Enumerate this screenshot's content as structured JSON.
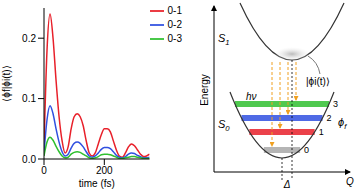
{
  "chart_data": {
    "type": "line",
    "xlabel": "time (fs)",
    "ylabel": "⟨ϕf|ϕi(t)⟩",
    "x": [
      0,
      10,
      20,
      30,
      40,
      50,
      60,
      70,
      80,
      90,
      100,
      110,
      120,
      130,
      140,
      150,
      160,
      170,
      180,
      190,
      200,
      210,
      220,
      230,
      240,
      250,
      260,
      270,
      280,
      290,
      300,
      310,
      320,
      330,
      340,
      350
    ],
    "series": [
      {
        "name": "0-1",
        "color": "#e8202a",
        "values": [
          0.02,
          0.18,
          0.24,
          0.2,
          0.13,
          0.07,
          0.03,
          0.01,
          0.02,
          0.05,
          0.07,
          0.075,
          0.07,
          0.055,
          0.03,
          0.01,
          0.005,
          0.01,
          0.025,
          0.04,
          0.05,
          0.05,
          0.045,
          0.03,
          0.015,
          0.005,
          0.003,
          0.01,
          0.02,
          0.025,
          0.022,
          0.015,
          0.008,
          0.004,
          0.005,
          0.008
        ]
      },
      {
        "name": "0-2",
        "color": "#3050e0",
        "values": [
          0.01,
          0.065,
          0.088,
          0.075,
          0.05,
          0.028,
          0.012,
          0.005,
          0.008,
          0.018,
          0.026,
          0.028,
          0.026,
          0.02,
          0.012,
          0.005,
          0.003,
          0.005,
          0.01,
          0.016,
          0.019,
          0.019,
          0.017,
          0.012,
          0.006,
          0.003,
          0.002,
          0.004,
          0.008,
          0.01,
          0.009,
          0.006,
          0.004,
          0.002,
          0.002,
          0.003
        ]
      },
      {
        "name": "0-3",
        "color": "#30c030",
        "values": [
          0.005,
          0.028,
          0.036,
          0.031,
          0.021,
          0.012,
          0.005,
          0.002,
          0.003,
          0.008,
          0.011,
          0.012,
          0.011,
          0.008,
          0.005,
          0.002,
          0.001,
          0.002,
          0.004,
          0.007,
          0.008,
          0.008,
          0.007,
          0.005,
          0.003,
          0.001,
          0.001,
          0.002,
          0.003,
          0.004,
          0.004,
          0.003,
          0.002,
          0.001,
          0.001,
          0.001
        ]
      }
    ],
    "xlim": [
      0,
      350
    ],
    "xticks": [
      0,
      200
    ],
    "ylim": [
      0,
      0.25
    ],
    "yticks": [
      {
        "value": 0,
        "label": "0.0"
      },
      0.1,
      0.2
    ],
    "legend": "upper right"
  },
  "diagram": {
    "axis_labels": {
      "y": "Energy",
      "x": "Q"
    },
    "states": [
      "S1",
      "S0"
    ],
    "photon": "hν",
    "wavepacket": "|ϕi(t)⟩",
    "final_state": "ϕf",
    "displacement": "Δ",
    "levels": [
      {
        "label": "0",
        "color": "#a8a8a8"
      },
      {
        "label": "1",
        "color": "#e8202a"
      },
      {
        "label": "2",
        "color": "#3050e0"
      },
      {
        "label": "3",
        "color": "#30c030"
      }
    ]
  }
}
